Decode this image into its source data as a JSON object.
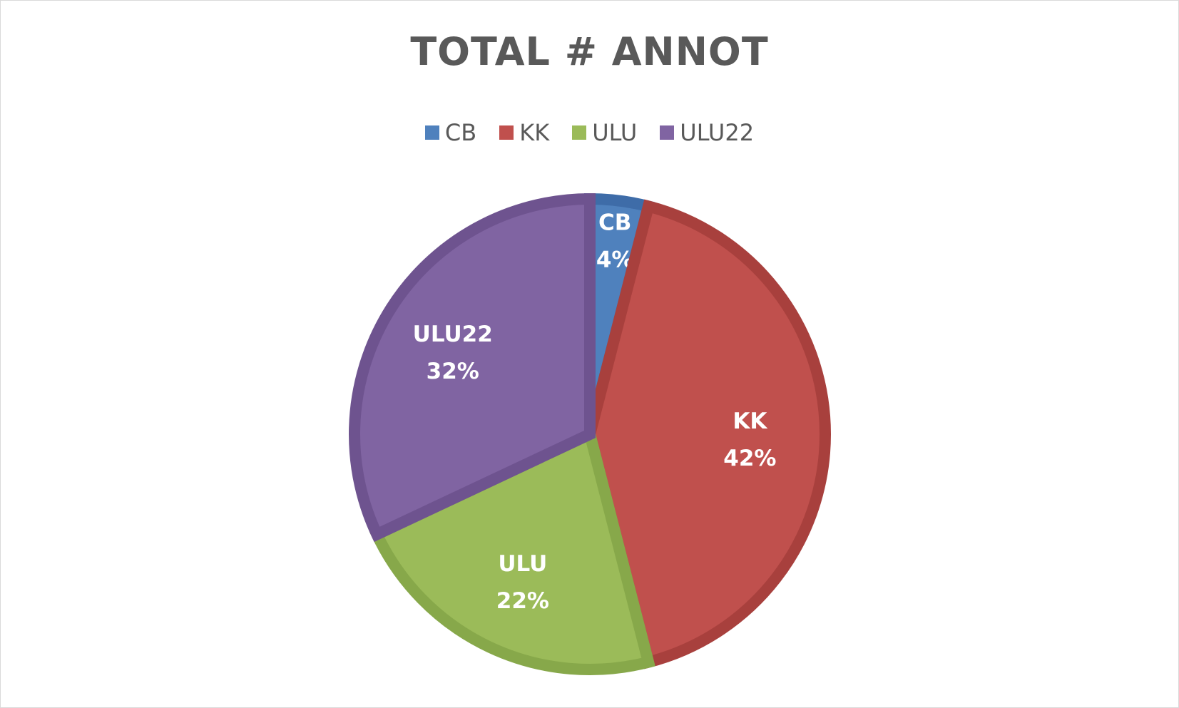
{
  "chart_data": {
    "type": "pie",
    "title": "TOTAL # ANNOT",
    "legend_position": "top",
    "categories": [
      "CB",
      "KK",
      "ULU",
      "ULU22"
    ],
    "values": [
      4,
      42,
      22,
      32
    ],
    "labels": [
      "4%",
      "42%",
      "22%",
      "32%"
    ],
    "colors": [
      "#4F81BD",
      "#C0504D",
      "#9BBB59",
      "#8064A2"
    ],
    "border_colors": [
      "#3E6CA8",
      "#A8403D",
      "#87A84A",
      "#6E538F"
    ]
  }
}
